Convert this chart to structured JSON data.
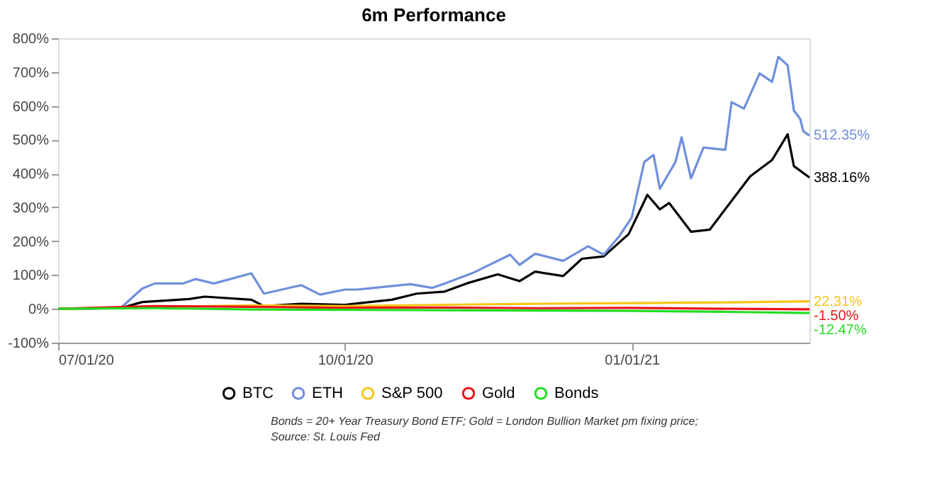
{
  "chart_data": {
    "type": "line",
    "title": "6m Performance",
    "xlim": [
      "2020-07-01",
      "2021-02-27"
    ],
    "xticks": [
      {
        "value": "2020-07-01",
        "label": "07/01/20"
      },
      {
        "value": "2020-10-01",
        "label": "10/01/20"
      },
      {
        "value": "2021-01-01",
        "label": "01/01/21"
      }
    ],
    "ylim": [
      -100,
      800
    ],
    "yticks": [
      {
        "value": -100,
        "label": "-100%"
      },
      {
        "value": 0,
        "label": "0%"
      },
      {
        "value": 100,
        "label": "100%"
      },
      {
        "value": 200,
        "label": "200%"
      },
      {
        "value": 300,
        "label": "300%"
      },
      {
        "value": 400,
        "label": "400%"
      },
      {
        "value": 500,
        "label": "500%"
      },
      {
        "value": 600,
        "label": "600%"
      },
      {
        "value": 700,
        "label": "700%"
      },
      {
        "value": 800,
        "label": "800%"
      }
    ],
    "grid": false,
    "legend": "bottom",
    "marker": "none",
    "line_style": "solid",
    "series": [
      {
        "name": "BTC",
        "color": "#000000",
        "x": [
          "2020-07-01",
          "2020-07-21",
          "2020-07-28",
          "2020-08-12",
          "2020-08-17",
          "2020-09-01",
          "2020-09-05",
          "2020-09-17",
          "2020-10-01",
          "2020-10-16",
          "2020-10-24",
          "2020-11-02",
          "2020-11-09",
          "2020-11-19",
          "2020-11-26",
          "2020-12-01",
          "2020-12-10",
          "2020-12-16",
          "2020-12-23",
          "2020-12-31",
          "2021-01-06",
          "2021-01-10",
          "2021-01-13",
          "2021-01-20",
          "2021-01-26",
          "2021-02-02",
          "2021-02-08",
          "2021-02-15",
          "2021-02-20",
          "2021-02-22",
          "2021-02-27"
        ],
        "values": [
          0,
          2,
          20,
          29,
          36,
          27,
          8,
          15,
          12,
          27,
          45,
          51,
          75,
          102,
          82,
          110,
          97,
          148,
          155,
          221,
          337,
          294,
          313,
          228,
          234,
          319,
          392,
          440,
          516,
          422,
          388.16
        ]
      },
      {
        "name": "ETH",
        "color": "#6f8fdc",
        "x": [
          "2020-07-01",
          "2020-07-21",
          "2020-07-28",
          "2020-08-01",
          "2020-08-10",
          "2020-08-14",
          "2020-08-20",
          "2020-09-01",
          "2020-09-05",
          "2020-09-17",
          "2020-09-23",
          "2020-10-01",
          "2020-10-05",
          "2020-10-22",
          "2020-10-29",
          "2020-11-02",
          "2020-11-11",
          "2020-11-23",
          "2020-11-26",
          "2020-12-01",
          "2020-12-10",
          "2020-12-18",
          "2020-12-23",
          "2020-12-28",
          "2021-01-01",
          "2021-01-05",
          "2021-01-08",
          "2021-01-10",
          "2021-01-15",
          "2021-01-17",
          "2021-01-20",
          "2021-01-24",
          "2021-01-31",
          "2021-02-02",
          "2021-02-06",
          "2021-02-11",
          "2021-02-15",
          "2021-02-17",
          "2021-02-20",
          "2021-02-22",
          "2021-02-24",
          "2021-02-25",
          "2021-02-27"
        ],
        "values": [
          0,
          2,
          60,
          75,
          75,
          88,
          75,
          105,
          45,
          70,
          42,
          57,
          57,
          73,
          62,
          75,
          106,
          160,
          130,
          163,
          142,
          185,
          160,
          215,
          270,
          434,
          455,
          355,
          434,
          507,
          386,
          477,
          470,
          611,
          592,
          696,
          671,
          745,
          720,
          586,
          562,
          525,
          512.35
        ]
      },
      {
        "name": "S&P 500",
        "color": "#f5c518",
        "x": [
          "2020-07-01",
          "2020-08-01",
          "2020-09-01",
          "2020-10-01",
          "2020-11-01",
          "2020-12-01",
          "2021-01-01",
          "2021-02-01",
          "2021-02-27"
        ],
        "values": [
          0,
          5,
          10,
          8,
          12,
          15,
          17,
          19,
          22.31
        ]
      },
      {
        "name": "Gold",
        "color": "#e8141a",
        "x": [
          "2020-07-01",
          "2020-08-01",
          "2020-09-01",
          "2020-10-01",
          "2020-11-01",
          "2020-12-01",
          "2021-01-01",
          "2021-02-01",
          "2021-02-27"
        ],
        "values": [
          0,
          8,
          6,
          3,
          4,
          2,
          3,
          0,
          -1.5
        ]
      },
      {
        "name": "Bonds",
        "color": "#22dd22",
        "x": [
          "2020-07-01",
          "2020-08-01",
          "2020-09-01",
          "2020-10-01",
          "2020-11-01",
          "2020-12-01",
          "2021-01-01",
          "2021-02-01",
          "2021-02-27"
        ],
        "values": [
          0,
          2,
          -2,
          -3,
          -4,
          -5,
          -6,
          -9,
          -12.47
        ]
      }
    ],
    "annotations": [
      {
        "text": "388.16%",
        "x": "2021-02-27",
        "y": 388.16
      },
      {
        "text": "512.35%",
        "x": "2021-02-27",
        "y": 512.35
      },
      {
        "text": "22.31%",
        "x": "2021-02-27",
        "y": 22.31
      },
      {
        "text": "-1.50%",
        "x": "2021-02-27",
        "y": -1.5
      },
      {
        "text": "-12.47%",
        "x": "2021-02-27",
        "y": -12.47
      },
      "Bonds = 20+ Year Treasury Bond ETF;   Gold = London Bullion Market pm fixing price;",
      "Source: St. Louis Fed"
    ]
  }
}
